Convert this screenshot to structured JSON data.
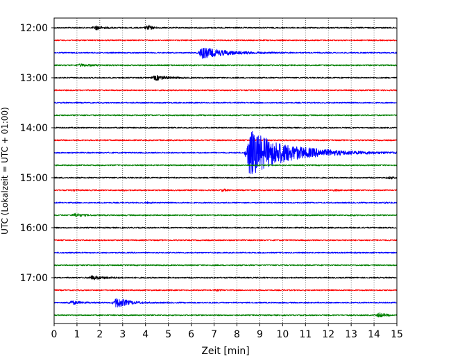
{
  "chart_data": {
    "type": "line",
    "title": "",
    "xlabel": "Zeit  [min]",
    "ylabel": "UTC (Lokalzeit = UTC + 01:00)",
    "xlim": [
      0,
      15
    ],
    "x_ticks": [
      "0",
      "1",
      "2",
      "3",
      "4",
      "5",
      "6",
      "7",
      "8",
      "9",
      "10",
      "11",
      "12",
      "13",
      "14",
      "15"
    ],
    "y_ticks": [
      "12:00",
      "13:00",
      "14:00",
      "15:00",
      "16:00",
      "17:00"
    ],
    "grid": "vertical dotted",
    "trace_interval_min": 15,
    "trace_colors": [
      "#000000",
      "#ff0000",
      "#0000ff",
      "#008000"
    ],
    "traces": [
      {
        "start": "12:00",
        "events": [
          {
            "t": 1.7,
            "amp": 0.35,
            "dur": 1.0
          },
          {
            "t": 4.0,
            "amp": 0.6,
            "dur": 0.6
          }
        ]
      },
      {
        "start": "12:15",
        "events": []
      },
      {
        "start": "12:30",
        "events": [
          {
            "t": 6.3,
            "amp": 0.7,
            "dur": 3.5
          },
          {
            "t": 15.0,
            "amp": 0.3,
            "dur": 0.1
          }
        ]
      },
      {
        "start": "12:45",
        "events": [
          {
            "t": 1.0,
            "amp": 0.15,
            "dur": 1.8
          }
        ]
      },
      {
        "start": "13:00",
        "events": [
          {
            "t": 4.3,
            "amp": 0.35,
            "dur": 1.7
          }
        ]
      },
      {
        "start": "13:15",
        "events": []
      },
      {
        "start": "13:30",
        "events": []
      },
      {
        "start": "13:45",
        "events": []
      },
      {
        "start": "14:00",
        "events": []
      },
      {
        "start": "14:15",
        "events": []
      },
      {
        "start": "14:30",
        "events": [
          {
            "t": 8.4,
            "amp": 2.8,
            "dur": 5.5
          }
        ]
      },
      {
        "start": "14:45",
        "events": []
      },
      {
        "start": "15:00",
        "events": [
          {
            "t": 14.6,
            "amp": 0.35,
            "dur": 0.4
          }
        ]
      },
      {
        "start": "15:15",
        "events": [
          {
            "t": 0.8,
            "amp": 0.2,
            "dur": 0.3
          },
          {
            "t": 3.0,
            "amp": 0.15,
            "dur": 0.3
          },
          {
            "t": 7.3,
            "amp": 0.35,
            "dur": 0.4
          },
          {
            "t": 12.2,
            "amp": 0.2,
            "dur": 0.4
          }
        ]
      },
      {
        "start": "15:30",
        "events": [
          {
            "t": 4.0,
            "amp": 0.2,
            "dur": 0.4
          },
          {
            "t": 14.4,
            "amp": 0.2,
            "dur": 0.4
          }
        ]
      },
      {
        "start": "15:45",
        "events": [
          {
            "t": 0.8,
            "amp": 0.3,
            "dur": 1.0
          },
          {
            "t": 13.0,
            "amp": 0.4,
            "dur": 0.15
          }
        ]
      },
      {
        "start": "16:00",
        "events": []
      },
      {
        "start": "16:15",
        "events": []
      },
      {
        "start": "16:30",
        "events": []
      },
      {
        "start": "16:45",
        "events": []
      },
      {
        "start": "17:00",
        "events": [
          {
            "t": 1.5,
            "amp": 0.25,
            "dur": 2.0
          }
        ]
      },
      {
        "start": "17:15",
        "events": [
          {
            "t": 7.0,
            "amp": 0.12,
            "dur": 0.6
          }
        ]
      },
      {
        "start": "17:30",
        "events": [
          {
            "t": 0.6,
            "amp": 0.3,
            "dur": 1.3
          },
          {
            "t": 2.6,
            "amp": 0.8,
            "dur": 1.6
          }
        ]
      },
      {
        "start": "17:45",
        "events": [
          {
            "t": 14.1,
            "amp": 0.4,
            "dur": 0.9
          }
        ]
      }
    ]
  }
}
